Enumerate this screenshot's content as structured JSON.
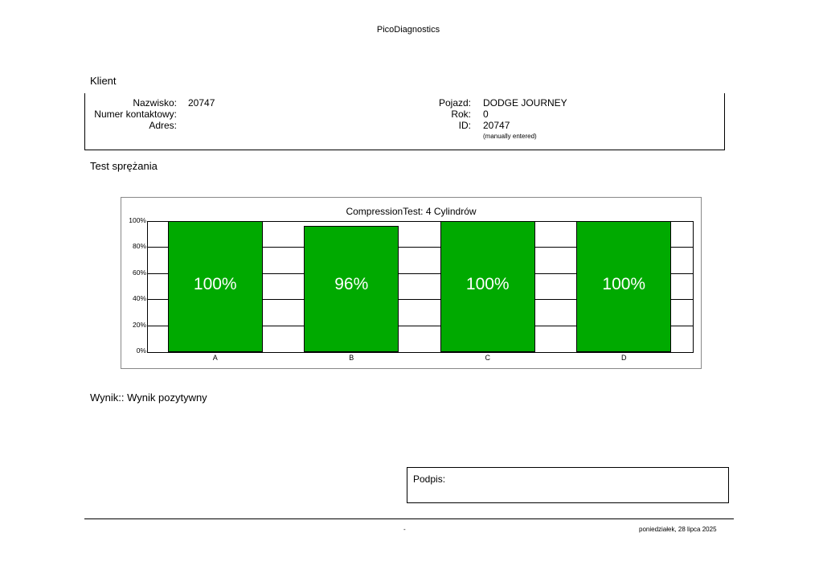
{
  "app_title": "PicoDiagnostics",
  "client": {
    "section_title": "Klient",
    "surname_label": "Nazwisko:",
    "surname_value": "20747",
    "contact_label": "Numer kontaktowy:",
    "contact_value": "",
    "address_label": "Adres:",
    "address_value": "",
    "vehicle_label": "Pojazd:",
    "vehicle_value": "DODGE JOURNEY",
    "year_label": "Rok:",
    "year_value": "0",
    "id_label": "ID:",
    "id_value": "20747",
    "id_note": "(manually entered)"
  },
  "test": {
    "section_title": "Test sprężania"
  },
  "chart_data": {
    "type": "bar",
    "title": "CompressionTest: 4 Cylindrów",
    "categories": [
      "A",
      "B",
      "C",
      "D"
    ],
    "values": [
      100,
      96,
      100,
      100
    ],
    "value_labels": [
      "100%",
      "96%",
      "100%",
      "100%"
    ],
    "ylim": [
      0,
      100
    ],
    "yticks": [
      "0%",
      "20%",
      "40%",
      "60%",
      "80%",
      "100%"
    ],
    "xlabel": "",
    "ylabel": "",
    "grid": true,
    "bar_color": "#00aa00"
  },
  "result_text": "Wynik:: Wynik pozytywny",
  "signature_label": "Podpis:",
  "footer": {
    "center": "-",
    "date": "poniedziałek, 28 lipca 2025"
  }
}
